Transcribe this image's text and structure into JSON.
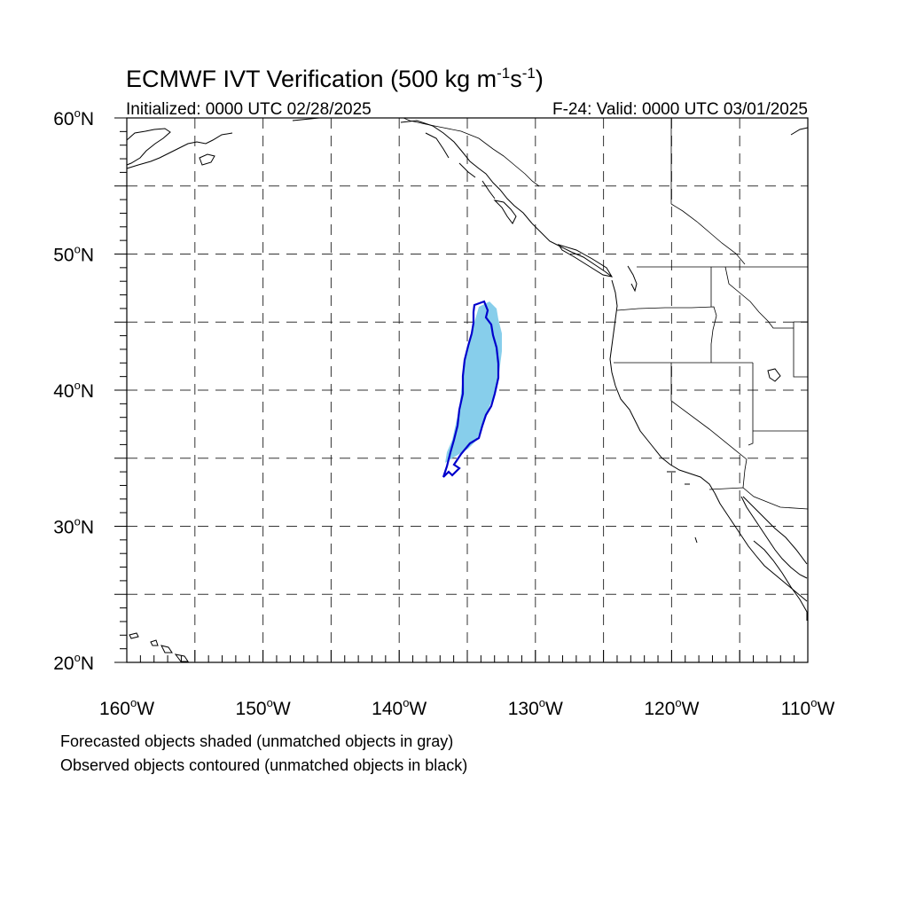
{
  "title": {
    "main": "ECMWF IVT Verification (500 kg m",
    "sup1": "-1",
    "mid": "s",
    "sup2": "-1",
    "end": ")"
  },
  "initialized": "Initialized: 0000 UTC 02/28/2025",
  "valid": "F-24: Valid: 0000 UTC 03/01/2025",
  "map": {
    "lon_range": [
      -160,
      -110
    ],
    "lat_range": [
      20,
      60
    ],
    "gridlines": "dashed",
    "lon_grid": [
      -155,
      -150,
      -145,
      -140,
      -135,
      -130,
      -125,
      -120,
      -115
    ],
    "lat_grid": [
      25,
      30,
      35,
      40,
      45,
      50,
      55
    ],
    "lon_labels": [
      {
        "lon": -160,
        "deg": "160",
        "hemi": "W"
      },
      {
        "lon": -150,
        "deg": "150",
        "hemi": "W"
      },
      {
        "lon": -140,
        "deg": "140",
        "hemi": "W"
      },
      {
        "lon": -130,
        "deg": "130",
        "hemi": "W"
      },
      {
        "lon": -120,
        "deg": "120",
        "hemi": "W"
      },
      {
        "lon": -110,
        "deg": "110",
        "hemi": "W"
      }
    ],
    "lat_labels": [
      {
        "lat": 60,
        "deg": "60",
        "hemi": "N"
      },
      {
        "lat": 50,
        "deg": "50",
        "hemi": "N"
      },
      {
        "lat": 40,
        "deg": "40",
        "hemi": "N"
      },
      {
        "lat": 30,
        "deg": "30",
        "hemi": "N"
      },
      {
        "lat": 20,
        "deg": "20",
        "hemi": "N"
      }
    ]
  },
  "objects": {
    "forecast_color": "#87ceeb",
    "observed_color": "#0000cc"
  },
  "legend": {
    "line1": "Forecasted objects shaded (unmatched objects in gray)",
    "line2": "Observed objects contoured (unmatched objects in black)"
  }
}
